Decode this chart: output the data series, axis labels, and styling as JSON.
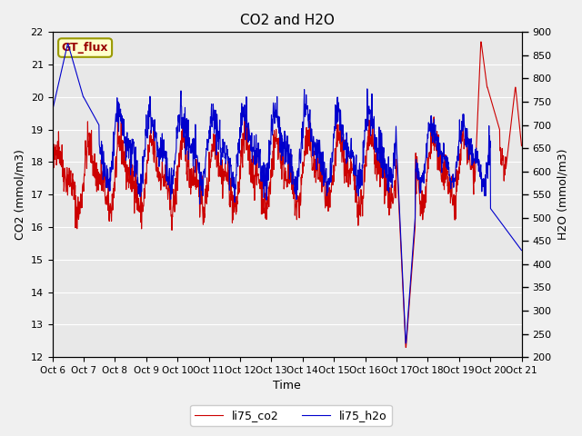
{
  "title": "CO2 and H2O",
  "xlabel": "Time",
  "ylabel_left": "CO2 (mmol/m3)",
  "ylabel_right": "H2O (mmol/m3)",
  "ylim_left": [
    12.0,
    22.0
  ],
  "ylim_right": [
    200,
    900
  ],
  "yticks_left": [
    12.0,
    13.0,
    14.0,
    15.0,
    16.0,
    17.0,
    18.0,
    19.0,
    20.0,
    21.0,
    22.0
  ],
  "yticks_right": [
    200,
    250,
    300,
    350,
    400,
    450,
    500,
    550,
    600,
    650,
    700,
    750,
    800,
    850,
    900
  ],
  "xtick_labels": [
    "Oct 6",
    "Oct 7",
    "Oct 8",
    "Oct 9",
    "Oct 10",
    "Oct 11",
    "Oct 12",
    "Oct 13",
    "Oct 14",
    "Oct 15",
    "Oct 16",
    "Oct 17",
    "Oct 18",
    "Oct 19",
    "Oct 20",
    "Oct 21"
  ],
  "color_co2": "#cc0000",
  "color_h2o": "#0000cc",
  "label_co2": "li75_co2",
  "label_h2o": "li75_h2o",
  "gt_flux_label": "GT_flux",
  "bg_color": "#e8e8e8",
  "fig_bg_color": "#f0f0f0"
}
